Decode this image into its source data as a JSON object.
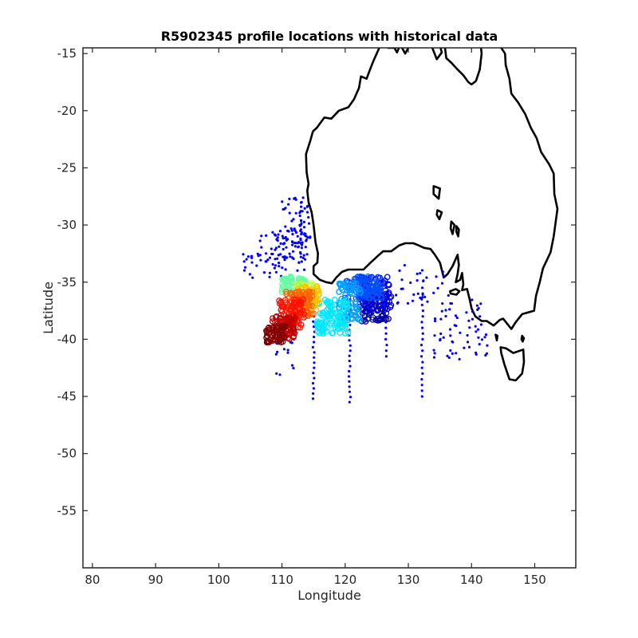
{
  "chart_data": {
    "type": "scatter",
    "title": "R5902345 profile locations with historical data",
    "xlabel": "Longitude",
    "ylabel": "Latitude",
    "xlim": [
      78.5,
      156.5
    ],
    "ylim": [
      -60,
      -14.5
    ],
    "xticks": [
      80,
      90,
      100,
      110,
      120,
      130,
      140,
      150
    ],
    "yticks": [
      -15,
      -20,
      -25,
      -30,
      -35,
      -40,
      -45,
      -50,
      -55
    ],
    "ytick_labels": [
      "-15",
      "-20",
      "-25",
      "-30",
      "-35",
      "-40",
      "-45",
      "-50",
      "-55"
    ],
    "grid": false,
    "box": true,
    "coastline_color": "#000000",
    "historical_color": "#0000ff",
    "colormap": "jet",
    "coastline_mainland": [
      [
        114.9,
        -21.8
      ],
      [
        114.5,
        -22.6
      ],
      [
        113.8,
        -23.8
      ],
      [
        113.9,
        -25.4
      ],
      [
        114.2,
        -26.4
      ],
      [
        114.0,
        -27.0
      ],
      [
        114.2,
        -28.0
      ],
      [
        114.7,
        -28.9
      ],
      [
        115.0,
        -30.0
      ],
      [
        115.3,
        -31.5
      ],
      [
        115.7,
        -32.5
      ],
      [
        115.6,
        -33.3
      ],
      [
        115.0,
        -33.6
      ],
      [
        115.0,
        -34.3
      ],
      [
        116.0,
        -34.8
      ],
      [
        117.0,
        -35.0
      ],
      [
        117.9,
        -35.1
      ],
      [
        118.6,
        -34.6
      ],
      [
        119.5,
        -34.1
      ],
      [
        120.5,
        -33.9
      ],
      [
        121.8,
        -33.9
      ],
      [
        122.9,
        -33.9
      ],
      [
        124.0,
        -33.3
      ],
      [
        125.0,
        -32.8
      ],
      [
        126.0,
        -32.3
      ],
      [
        127.3,
        -32.3
      ],
      [
        128.5,
        -31.8
      ],
      [
        129.5,
        -31.6
      ],
      [
        130.8,
        -31.6
      ],
      [
        131.7,
        -31.8
      ],
      [
        132.5,
        -32.0
      ],
      [
        133.5,
        -32.1
      ],
      [
        134.2,
        -32.6
      ],
      [
        135.0,
        -33.3
      ],
      [
        135.6,
        -34.6
      ],
      [
        136.2,
        -34.3
      ],
      [
        137.0,
        -33.6
      ],
      [
        137.8,
        -32.6
      ],
      [
        138.0,
        -33.5
      ],
      [
        137.8,
        -34.3
      ],
      [
        137.5,
        -35.0
      ],
      [
        138.2,
        -34.8
      ],
      [
        138.5,
        -34.2
      ],
      [
        138.7,
        -35.2
      ],
      [
        138.5,
        -35.7
      ],
      [
        139.3,
        -35.6
      ],
      [
        139.7,
        -36.5
      ],
      [
        140.0,
        -37.3
      ],
      [
        140.6,
        -38.0
      ],
      [
        141.6,
        -38.4
      ],
      [
        142.4,
        -38.4
      ],
      [
        143.5,
        -38.8
      ],
      [
        144.5,
        -38.3
      ],
      [
        145.0,
        -38.2
      ],
      [
        146.3,
        -39.1
      ],
      [
        147.0,
        -38.5
      ],
      [
        148.0,
        -37.8
      ],
      [
        149.9,
        -37.5
      ],
      [
        150.2,
        -36.2
      ],
      [
        150.8,
        -35.0
      ],
      [
        151.3,
        -33.8
      ],
      [
        152.5,
        -32.4
      ],
      [
        153.0,
        -31.0
      ],
      [
        153.6,
        -28.6
      ],
      [
        153.1,
        -27.3
      ],
      [
        153.0,
        -25.5
      ],
      [
        152.3,
        -24.7
      ],
      [
        151.0,
        -23.6
      ],
      [
        150.3,
        -22.4
      ],
      [
        149.4,
        -21.5
      ],
      [
        148.5,
        -20.3
      ],
      [
        147.4,
        -19.3
      ],
      [
        146.3,
        -18.5
      ],
      [
        146.0,
        -17.2
      ],
      [
        145.4,
        -16.0
      ],
      [
        145.3,
        -15.0
      ],
      [
        144.7,
        -14.5
      ]
    ],
    "coastline_north": [
      [
        114.9,
        -21.8
      ],
      [
        115.5,
        -21.5
      ],
      [
        116.7,
        -20.6
      ],
      [
        117.8,
        -20.7
      ],
      [
        119.0,
        -20.0
      ],
      [
        120.5,
        -19.7
      ],
      [
        121.4,
        -19.0
      ],
      [
        122.2,
        -18.0
      ],
      [
        122.5,
        -17.0
      ],
      [
        123.4,
        -17.2
      ],
      [
        124.0,
        -16.3
      ],
      [
        124.5,
        -15.6
      ],
      [
        125.4,
        -14.5
      ]
    ],
    "coastline_segments": [
      [
        [
          126.7,
          -14.5
        ],
        [
          127.8,
          -14.5
        ],
        [
          128.2,
          -14.9
        ],
        [
          128.5,
          -14.5
        ]
      ],
      [
        [
          129.0,
          -14.5
        ],
        [
          129.5,
          -15.0
        ],
        [
          130.0,
          -14.5
        ]
      ],
      [
        [
          135.8,
          -14.5
        ],
        [
          136.0,
          -15.4
        ],
        [
          136.8,
          -15.8
        ],
        [
          137.8,
          -16.4
        ],
        [
          138.7,
          -16.9
        ],
        [
          139.5,
          -17.5
        ],
        [
          140.0,
          -17.7
        ],
        [
          140.7,
          -17.4
        ],
        [
          141.3,
          -16.4
        ],
        [
          141.6,
          -15.0
        ],
        [
          141.5,
          -14.5
        ]
      ],
      [
        [
          133.8,
          -14.5
        ],
        [
          134.5,
          -15.5
        ],
        [
          135.3,
          -14.9
        ],
        [
          135.1,
          -14.5
        ]
      ]
    ],
    "islands": [
      [
        [
          144.6,
          -40.7
        ],
        [
          145.5,
          -40.8
        ],
        [
          146.6,
          -41.2
        ],
        [
          148.2,
          -40.9
        ],
        [
          148.3,
          -42.0
        ],
        [
          148.0,
          -43.0
        ],
        [
          147.0,
          -43.6
        ],
        [
          146.0,
          -43.5
        ],
        [
          145.2,
          -42.2
        ],
        [
          144.7,
          -41.2
        ],
        [
          144.6,
          -40.7
        ]
      ],
      [
        [
          136.6,
          -35.8
        ],
        [
          137.5,
          -35.6
        ],
        [
          138.1,
          -35.8
        ],
        [
          137.6,
          -36.1
        ],
        [
          136.7,
          -36.0
        ],
        [
          136.6,
          -35.8
        ]
      ],
      [
        [
          143.8,
          -39.6
        ],
        [
          144.1,
          -39.7
        ],
        [
          144.0,
          -40.1
        ],
        [
          143.8,
          -39.6
        ]
      ],
      [
        [
          148.0,
          -39.7
        ],
        [
          148.3,
          -39.9
        ],
        [
          148.1,
          -40.2
        ],
        [
          147.9,
          -40.0
        ],
        [
          148.0,
          -39.7
        ]
      ],
      [
        [
          134.0,
          -26.6
        ],
        [
          135.0,
          -26.8
        ],
        [
          134.8,
          -27.7
        ],
        [
          134.0,
          -27.3
        ],
        [
          134.0,
          -26.6
        ]
      ],
      [
        [
          134.6,
          -28.7
        ],
        [
          135.3,
          -28.9
        ],
        [
          134.9,
          -29.5
        ],
        [
          134.5,
          -29.1
        ],
        [
          134.6,
          -28.7
        ]
      ],
      [
        [
          136.8,
          -29.7
        ],
        [
          137.3,
          -30.0
        ],
        [
          137.0,
          -30.8
        ],
        [
          136.7,
          -30.3
        ],
        [
          136.8,
          -29.7
        ]
      ],
      [
        [
          137.6,
          -30.1
        ],
        [
          138.0,
          -30.4
        ],
        [
          137.9,
          -31.0
        ],
        [
          137.6,
          -30.6
        ],
        [
          137.6,
          -30.1
        ]
      ]
    ],
    "historical_lines": [
      {
        "lon": 115.0,
        "lat_from": -38.0,
        "lat_to": -45.6,
        "step": 0.45
      },
      {
        "lon": 120.7,
        "lat_from": -36.5,
        "lat_to": -45.6,
        "step": 0.45
      },
      {
        "lon": 132.2,
        "lat_from": -36.0,
        "lat_to": -45.0,
        "step": 0.5
      },
      {
        "lon": 126.5,
        "lat_from": -35.0,
        "lat_to": -41.5,
        "step": 0.5
      },
      {
        "lon": 113.0,
        "lat_from": -28.0,
        "lat_to": -33.5,
        "step": 0.4
      }
    ],
    "historical_scatter_regions": [
      {
        "lon": [
          106.5,
          114.0
        ],
        "lat": [
          -30.5,
          -34.0
        ],
        "count": 70
      },
      {
        "lon": [
          110.0,
          114.5
        ],
        "lat": [
          -27.5,
          -32.0
        ],
        "count": 60
      },
      {
        "lon": [
          103.5,
          110.0
        ],
        "lat": [
          -32.5,
          -35.0
        ],
        "count": 25
      },
      {
        "lon": [
          109.0,
          112.0
        ],
        "lat": [
          -38.5,
          -43.5
        ],
        "count": 15
      },
      {
        "lon": [
          128.0,
          137.0
        ],
        "lat": [
          -33.5,
          -37.0
        ],
        "count": 35
      },
      {
        "lon": [
          134.0,
          142.5
        ],
        "lat": [
          -36.5,
          -41.8
        ],
        "count": 60
      }
    ],
    "profile_clusters": [
      {
        "color": "#0000a0",
        "lon": [
          122.5,
          127.0
        ],
        "lat": [
          -36.0,
          -38.5
        ],
        "count": 70
      },
      {
        "color": "#0000e0",
        "lon": [
          122.0,
          127.5
        ],
        "lat": [
          -34.5,
          -37.5
        ],
        "count": 90
      },
      {
        "color": "#0050ff",
        "lon": [
          120.0,
          126.0
        ],
        "lat": [
          -34.5,
          -36.5
        ],
        "count": 90
      },
      {
        "color": "#00a0ff",
        "lon": [
          119.0,
          122.5
        ],
        "lat": [
          -35.0,
          -38.5
        ],
        "count": 70
      },
      {
        "color": "#00e8ff",
        "lon": [
          115.5,
          120.5
        ],
        "lat": [
          -36.5,
          -39.5
        ],
        "count": 100
      },
      {
        "color": "#60ffa0",
        "lon": [
          110.0,
          114.0
        ],
        "lat": [
          -34.5,
          -36.0
        ],
        "count": 60
      },
      {
        "color": "#c0ff40",
        "lon": [
          112.0,
          115.5
        ],
        "lat": [
          -35.0,
          -36.5
        ],
        "count": 40
      },
      {
        "color": "#ffc000",
        "lon": [
          112.5,
          116.0
        ],
        "lat": [
          -35.3,
          -37.5
        ],
        "count": 60
      },
      {
        "color": "#ff6000",
        "lon": [
          110.5,
          115.0
        ],
        "lat": [
          -35.8,
          -38.0
        ],
        "count": 80
      },
      {
        "color": "#ff1000",
        "lon": [
          109.5,
          113.5
        ],
        "lat": [
          -36.5,
          -39.0
        ],
        "count": 80
      },
      {
        "color": "#c00000",
        "lon": [
          108.5,
          112.0
        ],
        "lat": [
          -38.0,
          -40.0
        ],
        "count": 70
      },
      {
        "color": "#800000",
        "lon": [
          107.5,
          110.5
        ],
        "lat": [
          -38.8,
          -40.3
        ],
        "count": 60
      }
    ]
  }
}
